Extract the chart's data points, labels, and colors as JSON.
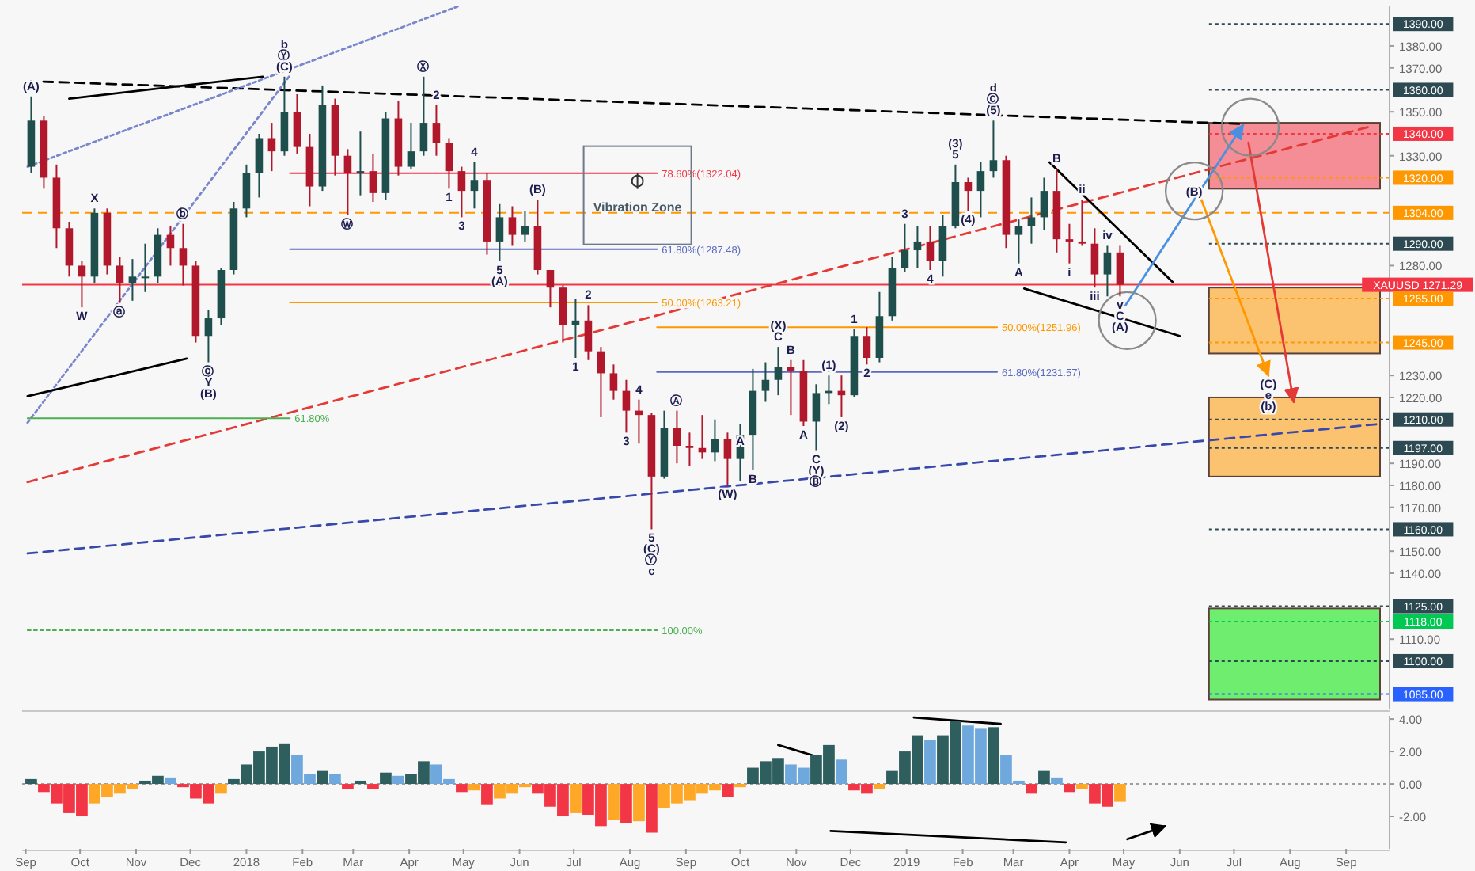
{
  "chart_data": [
    {
      "type": "candlestick",
      "xlim": [
        "2017-08-30",
        "2019-09-25"
      ],
      "ylim": [
        1078,
        1398
      ],
      "tick_labels": "y",
      "yticks": [
        {
          "value": 1380,
          "label": "1380.00"
        },
        {
          "value": 1370,
          "label": "1370.00"
        },
        {
          "value": 1350,
          "label": "1350.00"
        },
        {
          "value": 1330,
          "label": "1330.00"
        },
        {
          "value": 1280,
          "label": "1280.00"
        },
        {
          "value": 1230,
          "label": "1230.00"
        },
        {
          "value": 1220,
          "label": "1220.00"
        },
        {
          "value": 1190,
          "label": "1190.00"
        },
        {
          "value": 1180,
          "label": "1180.00"
        },
        {
          "value": 1170,
          "label": "1170.00"
        },
        {
          "value": 1150,
          "label": "1150.00"
        },
        {
          "value": 1140,
          "label": "1140.00"
        },
        {
          "value": 1110,
          "label": "1110.00"
        }
      ],
      "x": [
        "2017-09-04",
        "2017-09-11",
        "2017-09-18",
        "2017-09-25",
        "2017-10-02",
        "2017-10-09",
        "2017-10-16",
        "2017-10-23",
        "2017-10-30",
        "2017-11-06",
        "2017-11-13",
        "2017-11-20",
        "2017-11-27",
        "2017-12-04",
        "2017-12-11",
        "2017-12-18",
        "2017-12-25",
        "2018-01-01",
        "2018-01-08",
        "2018-01-15",
        "2018-01-22",
        "2018-01-29",
        "2018-02-05",
        "2018-02-12",
        "2018-02-19",
        "2018-02-26",
        "2018-03-05",
        "2018-03-12",
        "2018-03-19",
        "2018-03-26",
        "2018-04-02",
        "2018-04-09",
        "2018-04-16",
        "2018-04-23",
        "2018-04-30",
        "2018-05-07",
        "2018-05-14",
        "2018-05-21",
        "2018-05-28",
        "2018-06-04",
        "2018-06-11",
        "2018-06-18",
        "2018-06-25",
        "2018-07-02",
        "2018-07-09",
        "2018-07-16",
        "2018-07-23",
        "2018-07-30",
        "2018-08-06",
        "2018-08-13",
        "2018-08-20",
        "2018-08-27",
        "2018-09-03",
        "2018-09-10",
        "2018-09-17",
        "2018-09-24",
        "2018-10-01",
        "2018-10-08",
        "2018-10-15",
        "2018-10-22",
        "2018-10-29",
        "2018-11-05",
        "2018-11-12",
        "2018-11-19",
        "2018-11-26",
        "2018-12-03",
        "2018-12-10",
        "2018-12-17",
        "2018-12-24",
        "2018-12-31",
        "2019-01-07",
        "2019-01-14",
        "2019-01-21",
        "2019-01-28",
        "2019-02-04",
        "2019-02-11",
        "2019-02-18",
        "2019-02-25",
        "2019-03-04",
        "2019-03-11",
        "2019-03-18",
        "2019-03-25",
        "2019-04-01",
        "2019-04-08",
        "2019-04-15",
        "2019-04-22",
        "2019-04-29"
      ],
      "ohlc": [
        [
          1325,
          1357,
          1322,
          1346
        ],
        [
          1346,
          1348,
          1315,
          1320
        ],
        [
          1320,
          1326,
          1288,
          1297
        ],
        [
          1297,
          1300,
          1275,
          1280
        ],
        [
          1280,
          1282,
          1261,
          1275
        ],
        [
          1275,
          1306,
          1272,
          1304
        ],
        [
          1304,
          1306,
          1276,
          1280
        ],
        [
          1280,
          1284,
          1263,
          1272
        ],
        [
          1272,
          1283,
          1264,
          1275
        ],
        [
          1275,
          1290,
          1268,
          1275
        ],
        [
          1275,
          1297,
          1272,
          1294
        ],
        [
          1294,
          1298,
          1280,
          1288
        ],
        [
          1288,
          1299,
          1271,
          1280
        ],
        [
          1280,
          1282,
          1245,
          1248
        ],
        [
          1248,
          1260,
          1236,
          1256
        ],
        [
          1256,
          1279,
          1253,
          1278
        ],
        [
          1278,
          1309,
          1276,
          1306
        ],
        [
          1306,
          1326,
          1302,
          1322
        ],
        [
          1322,
          1340,
          1311,
          1338
        ],
        [
          1338,
          1345,
          1323,
          1332
        ],
        [
          1332,
          1366,
          1330,
          1350
        ],
        [
          1350,
          1358,
          1331,
          1334
        ],
        [
          1334,
          1340,
          1307,
          1316
        ],
        [
          1316,
          1362,
          1314,
          1353
        ],
        [
          1353,
          1356,
          1321,
          1330
        ],
        [
          1330,
          1333,
          1303,
          1322
        ],
        [
          1322,
          1341,
          1312,
          1323
        ],
        [
          1323,
          1331,
          1309,
          1313
        ],
        [
          1313,
          1350,
          1310,
          1347
        ],
        [
          1347,
          1355,
          1321,
          1325
        ],
        [
          1325,
          1345,
          1324,
          1332
        ],
        [
          1332,
          1366,
          1330,
          1345
        ],
        [
          1345,
          1353,
          1330,
          1336
        ],
        [
          1336,
          1338,
          1315,
          1323
        ],
        [
          1323,
          1325,
          1302,
          1314
        ],
        [
          1314,
          1327,
          1306,
          1319
        ],
        [
          1319,
          1322,
          1285,
          1291
        ],
        [
          1291,
          1308,
          1282,
          1302
        ],
        [
          1302,
          1307,
          1289,
          1294
        ],
        [
          1294,
          1305,
          1291,
          1298
        ],
        [
          1298,
          1310,
          1276,
          1278
        ],
        [
          1278,
          1278,
          1261,
          1270
        ],
        [
          1270,
          1271,
          1245,
          1253
        ],
        [
          1253,
          1265,
          1238,
          1255
        ],
        [
          1255,
          1262,
          1237,
          1241
        ],
        [
          1241,
          1243,
          1211,
          1231
        ],
        [
          1231,
          1235,
          1219,
          1223
        ],
        [
          1223,
          1228,
          1204,
          1214
        ],
        [
          1214,
          1219,
          1199,
          1212
        ],
        [
          1212,
          1213,
          1160,
          1184
        ],
        [
          1184,
          1214,
          1183,
          1206
        ],
        [
          1206,
          1214,
          1190,
          1198
        ],
        [
          1198,
          1204,
          1189,
          1197
        ],
        [
          1197,
          1212,
          1192,
          1195
        ],
        [
          1195,
          1210,
          1191,
          1201
        ],
        [
          1201,
          1204,
          1180,
          1192
        ],
        [
          1192,
          1208,
          1182,
          1203
        ],
        [
          1203,
          1233,
          1187,
          1223
        ],
        [
          1223,
          1236,
          1218,
          1228
        ],
        [
          1228,
          1243,
          1221,
          1234
        ],
        [
          1234,
          1237,
          1212,
          1232
        ],
        [
          1232,
          1237,
          1207,
          1209
        ],
        [
          1209,
          1226,
          1196,
          1222
        ],
        [
          1222,
          1230,
          1217,
          1223
        ],
        [
          1223,
          1230,
          1211,
          1221
        ],
        [
          1221,
          1251,
          1220,
          1248
        ],
        [
          1248,
          1252,
          1235,
          1238
        ],
        [
          1238,
          1268,
          1236,
          1257
        ],
        [
          1257,
          1284,
          1255,
          1279
        ],
        [
          1279,
          1299,
          1277,
          1287
        ],
        [
          1287,
          1298,
          1279,
          1291
        ],
        [
          1291,
          1298,
          1278,
          1282
        ],
        [
          1282,
          1303,
          1275,
          1298
        ],
        [
          1298,
          1326,
          1297,
          1318
        ],
        [
          1318,
          1320,
          1305,
          1314
        ],
        [
          1314,
          1327,
          1302,
          1323
        ],
        [
          1323,
          1346,
          1320,
          1328
        ],
        [
          1328,
          1330,
          1288,
          1294
        ],
        [
          1294,
          1301,
          1281,
          1298
        ],
        [
          1298,
          1311,
          1290,
          1302
        ],
        [
          1302,
          1320,
          1296,
          1314
        ],
        [
          1314,
          1324,
          1286,
          1292
        ],
        [
          1292,
          1299,
          1281,
          1291
        ],
        [
          1291,
          1310,
          1289,
          1290
        ],
        [
          1290,
          1297,
          1270,
          1276
        ],
        [
          1276,
          1289,
          1266,
          1286
        ],
        [
          1286,
          1289,
          1266,
          1271.29
        ]
      ],
      "colors": [
        "#1f4f4c",
        "#b2182b",
        "#b2182b",
        "#b2182b",
        "#b2182b",
        "#1f4f4c",
        "#b2182b",
        "#b2182b",
        "#1f4f4c",
        "#1f4f4c",
        "#1f4f4c",
        "#b2182b",
        "#b2182b",
        "#b2182b",
        "#1f4f4c",
        "#1f4f4c",
        "#1f4f4c",
        "#1f4f4c",
        "#1f4f4c",
        "#b2182b",
        "#1f4f4c",
        "#b2182b",
        "#b2182b",
        "#1f4f4c",
        "#b2182b",
        "#b2182b",
        "#1f4f4c",
        "#b2182b",
        "#1f4f4c",
        "#b2182b",
        "#1f4f4c",
        "#1f4f4c",
        "#b2182b",
        "#b2182b",
        "#b2182b",
        "#1f4f4c",
        "#b2182b",
        "#1f4f4c",
        "#b2182b",
        "#1f4f4c",
        "#b2182b",
        "#b2182b",
        "#b2182b",
        "#1f4f4c",
        "#b2182b",
        "#b2182b",
        "#b2182b",
        "#b2182b",
        "#b2182b",
        "#b2182b",
        "#1f4f4c",
        "#b2182b",
        "#b2182b",
        "#b2182b",
        "#1f4f4c",
        "#b2182b",
        "#1f4f4c",
        "#1f4f4c",
        "#1f4f4c",
        "#1f4f4c",
        "#b2182b",
        "#b2182b",
        "#1f4f4c",
        "#1f4f4c",
        "#b2182b",
        "#1f4f4c",
        "#b2182b",
        "#1f4f4c",
        "#1f4f4c",
        "#1f4f4c",
        "#1f4f4c",
        "#b2182b",
        "#1f4f4c",
        "#1f4f4c",
        "#b2182b",
        "#1f4f4c",
        "#1f4f4c",
        "#b2182b",
        "#1f4f4c",
        "#1f4f4c",
        "#1f4f4c",
        "#b2182b",
        "#b2182b",
        "#b2182b",
        "#b2182b",
        "#1f4f4c",
        "#b2182b"
      ],
      "series": [
        {
          "type": "line",
          "x": [
            "2017-09-02",
            "2019-07-05"
          ],
          "values": [
            1364,
            1344.5
          ],
          "color": "#000000",
          "line_style": "dashed"
        },
        {
          "type": "line",
          "x": [
            "2017-09-02",
            "2019-09-13"
          ],
          "values": [
            1181.5,
            1343
          ],
          "color": "#e53935",
          "line_style": "dashed"
        },
        {
          "type": "line",
          "x": [
            "2017-09-02",
            "2019-09-20"
          ],
          "values": [
            1149,
            1208
          ],
          "color": "#3949ab",
          "line_style": "dashed"
        },
        {
          "type": "line",
          "x": [
            "2017-09-02",
            "2018-04-28"
          ],
          "values": [
            1325,
            1398
          ],
          "color": "#7986cb",
          "line_style": "dotted"
        },
        {
          "type": "line",
          "x": [
            "2017-09-02",
            "2018-01-25"
          ],
          "values": [
            1208.5,
            1366.5
          ],
          "color": "#7986cb",
          "line_style": "dotted"
        },
        {
          "type": "line",
          "x": [
            "2017-09-25",
            "2018-01-10"
          ],
          "values": [
            1356,
            1366
          ],
          "color": "#000000",
          "line_style": "solid"
        },
        {
          "type": "line",
          "x": [
            "2017-09-02",
            "2017-11-29"
          ],
          "values": [
            1220.6,
            1237.7
          ],
          "color": "#000000",
          "line_style": "solid"
        },
        {
          "type": "line",
          "x": [
            "2019-03-21",
            "2019-05-28"
          ],
          "values": [
            1327,
            1272.6
          ],
          "color": "#000000",
          "line_style": "solid"
        },
        {
          "type": "line",
          "x": [
            "2019-03-07",
            "2019-06-01"
          ],
          "values": [
            1269.6,
            1248
          ],
          "color": "#000000",
          "line_style": "solid"
        },
        {
          "type": "line",
          "name": "78.60%(1322.04)",
          "x": [
            "2018-01-25",
            "2018-08-16"
          ],
          "values": [
            1322.04,
            1322.04
          ],
          "color": "#f23645",
          "line_style": "solid"
        },
        {
          "type": "line",
          "name": "61.80%(1287.48)",
          "x": [
            "2018-01-25",
            "2018-08-16"
          ],
          "values": [
            1287.48,
            1287.48
          ],
          "color": "#5c6bc0",
          "line_style": "solid"
        },
        {
          "type": "line",
          "name": "50.00%(1263.21)",
          "x": [
            "2018-01-25",
            "2018-08-16"
          ],
          "values": [
            1263.21,
            1263.21
          ],
          "color": "#ff9800",
          "line_style": "solid"
        },
        {
          "type": "line",
          "name": "50.00%(1251.96)",
          "x": [
            "2018-08-16",
            "2019-02-20"
          ],
          "values": [
            1251.96,
            1251.96
          ],
          "color": "#ff9800",
          "line_style": "solid"
        },
        {
          "type": "line",
          "name": "61.80%(1231.57)",
          "x": [
            "2018-08-16",
            "2019-02-20"
          ],
          "values": [
            1231.57,
            1231.57
          ],
          "color": "#5c6bc0",
          "line_style": "solid"
        },
        {
          "type": "line",
          "name": "61.80%",
          "x": [
            "2017-09-02",
            "2018-01-25"
          ],
          "values": [
            1210.5,
            1210.5
          ],
          "color": "#4caf50",
          "line_style": "solid"
        },
        {
          "type": "line",
          "name": "100.00%",
          "x": [
            "2017-09-02",
            "2018-08-16"
          ],
          "values": [
            1114,
            1114
          ],
          "color": "#4caf50",
          "line_style": "dotted"
        },
        {
          "type": "line",
          "x": [
            "2019-05-02",
            "2019-06-09",
            "2019-07-06"
          ],
          "values": [
            1262,
            1310,
            1344
          ],
          "color": "#4a90e2",
          "line_style": "solid"
        },
        {
          "type": "line",
          "x": [
            "2019-06-12",
            "2019-07-20"
          ],
          "values": [
            1312,
            1230
          ],
          "color": "#ff9800",
          "line_style": "solid"
        },
        {
          "type": "line",
          "x": [
            "2019-07-09",
            "2019-08-03"
          ],
          "values": [
            1336,
            1218
          ],
          "color": "#e53935",
          "line_style": "solid"
        },
        {
          "type": "scatter",
          "x": [
            "2019-05-03",
            "2019-06-09",
            "2019-07-10"
          ],
          "values": [
            1255,
            1314,
            1343
          ],
          "color": "#8a8a8a",
          "marker": "circle"
        }
      ],
      "bands": [
        {
          "axis": "y",
          "from": 1315,
          "to": 1345,
          "color": "#f23645"
        },
        {
          "axis": "y",
          "from": 1240,
          "to": 1270,
          "color": "#ff9800"
        },
        {
          "axis": "y",
          "from": 1184,
          "to": 1220,
          "color": "#ff9800"
        },
        {
          "axis": "y",
          "from": 1082.5,
          "to": 1124,
          "color": "#00e600"
        }
      ],
      "ref_lines": [
        {
          "axis": "y",
          "value": 1390,
          "label": "1390.00",
          "color": "#2d4a53",
          "line_style": "dotted"
        },
        {
          "axis": "y",
          "value": 1360,
          "label": "1360.00",
          "color": "#2d4a53",
          "line_style": "dotted"
        },
        {
          "axis": "y",
          "value": 1340,
          "label": "1340.00",
          "color": "#f23645",
          "line_style": "dotted"
        },
        {
          "axis": "y",
          "value": 1320,
          "label": "1320.00",
          "color": "#ff9800",
          "line_style": "dotted"
        },
        {
          "axis": "y",
          "value": 1304,
          "label": "1304.00",
          "color": "#ff9800",
          "line_style": "dashed"
        },
        {
          "axis": "y",
          "value": 1290,
          "label": "1290.00",
          "color": "#2d4a53",
          "line_style": "dotted"
        },
        {
          "axis": "y",
          "value": 1271.29,
          "label": "XAUUSD 1271.29",
          "color": "#f23645",
          "line_style": "solid"
        },
        {
          "axis": "y",
          "value": 1265,
          "label": "1265.00",
          "color": "#ff9800",
          "line_style": "dotted"
        },
        {
          "axis": "y",
          "value": 1245,
          "label": "1245.00",
          "color": "#ff9800",
          "line_style": "dotted"
        },
        {
          "axis": "y",
          "value": 1210,
          "label": "1210.00",
          "color": "#2d4a53",
          "line_style": "dotted"
        },
        {
          "axis": "y",
          "value": 1197,
          "label": "1197.00",
          "color": "#2d4a53",
          "line_style": "dotted"
        },
        {
          "axis": "y",
          "value": 1160,
          "label": "1160.00",
          "color": "#2d4a53",
          "line_style": "dotted"
        },
        {
          "axis": "y",
          "value": 1125,
          "label": "1125.00",
          "color": "#2d4a53",
          "line_style": "dotted"
        },
        {
          "axis": "y",
          "value": 1118,
          "label": "1118.00",
          "color": "#00c853",
          "line_style": "dotted"
        },
        {
          "axis": "y",
          "value": 1100,
          "label": "1100.00",
          "color": "#2d4a53",
          "line_style": "dotted"
        },
        {
          "axis": "y",
          "value": 1085,
          "label": "1085.00",
          "color": "#2962ff",
          "line_style": "dotted"
        }
      ],
      "annotations": [
        "Vibration Zone",
        {
          "text": "(A)",
          "x": "2017-09-04",
          "y": 1357
        },
        {
          "text": "X",
          "x": "2017-10-09",
          "y": 1306
        },
        {
          "text": "W",
          "x": "2017-10-02",
          "y": 1261
        },
        {
          "text": "ⓐ",
          "x": "2017-10-23",
          "y": 1263
        },
        {
          "text": "ⓑ",
          "x": "2017-11-27",
          "y": 1299
        },
        {
          "text": "ⓒ",
          "x": "2017-12-11",
          "y": 1236
        },
        {
          "text": "Y",
          "x": "2017-12-11",
          "y": 1236
        },
        {
          "text": "(B)",
          "x": "2017-12-11",
          "y": 1236
        },
        {
          "text": "b",
          "x": "2018-01-22",
          "y": 1366
        },
        {
          "text": "Ⓨ",
          "x": "2018-01-22",
          "y": 1366
        },
        {
          "text": "(C)",
          "x": "2018-01-22",
          "y": 1366
        },
        {
          "text": "Ⓦ",
          "x": "2018-02-26",
          "y": 1303
        },
        {
          "text": "Ⓧ",
          "x": "2018-04-09",
          "y": 1366
        },
        {
          "text": "2",
          "x": "2018-04-16",
          "y": 1353
        },
        {
          "text": "1",
          "x": "2018-04-23",
          "y": 1315
        },
        {
          "text": "3",
          "x": "2018-04-30",
          "y": 1302
        },
        {
          "text": "4",
          "x": "2018-05-07",
          "y": 1327
        },
        {
          "text": "5",
          "x": "2018-05-21",
          "y": 1282
        },
        {
          "text": "(A)",
          "x": "2018-05-21",
          "y": 1282
        },
        {
          "text": "(B)",
          "x": "2018-06-11",
          "y": 1310
        },
        {
          "text": "1",
          "x": "2018-07-02",
          "y": 1238
        },
        {
          "text": "2",
          "x": "2018-07-09",
          "y": 1262
        },
        {
          "text": "3",
          "x": "2018-07-30",
          "y": 1204
        },
        {
          "text": "4",
          "x": "2018-08-06",
          "y": 1219
        },
        {
          "text": "5",
          "x": "2018-08-13",
          "y": 1160
        },
        {
          "text": "(C)",
          "x": "2018-08-13",
          "y": 1160
        },
        {
          "text": "Ⓨ",
          "x": "2018-08-13",
          "y": 1160
        },
        {
          "text": "c",
          "x": "2018-08-13",
          "y": 1160
        },
        {
          "text": "Ⓐ",
          "x": "2018-08-27",
          "y": 1214
        },
        {
          "text": "(W)",
          "x": "2018-09-24",
          "y": 1180
        },
        {
          "text": "A",
          "x": "2018-10-01",
          "y": 1204
        },
        {
          "text": "B",
          "x": "2018-10-08",
          "y": 1187
        },
        {
          "text": "(X)",
          "x": "2018-10-22",
          "y": 1243
        },
        {
          "text": "C",
          "x": "2018-10-22",
          "y": 1243
        },
        {
          "text": "B",
          "x": "2018-10-29",
          "y": 1237
        },
        {
          "text": "A",
          "x": "2018-11-05",
          "y": 1207
        },
        {
          "text": "C",
          "x": "2018-11-12",
          "y": 1196
        },
        {
          "text": "(Y)",
          "x": "2018-11-12",
          "y": 1196
        },
        {
          "text": "Ⓑ",
          "x": "2018-11-12",
          "y": 1196
        },
        {
          "text": "(1)",
          "x": "2018-11-19",
          "y": 1230
        },
        {
          "text": "(2)",
          "x": "2018-11-26",
          "y": 1211
        },
        {
          "text": "1",
          "x": "2018-12-03",
          "y": 1251
        },
        {
          "text": "2",
          "x": "2018-12-10",
          "y": 1235
        },
        {
          "text": "3",
          "x": "2018-12-31",
          "y": 1299
        },
        {
          "text": "4",
          "x": "2019-01-14",
          "y": 1278
        },
        {
          "text": "(3)",
          "x": "2019-01-28",
          "y": 1326
        },
        {
          "text": "5",
          "x": "2019-01-28",
          "y": 1326
        },
        {
          "text": "(4)",
          "x": "2019-02-04",
          "y": 1305
        },
        {
          "text": "d",
          "x": "2019-02-18",
          "y": 1346
        },
        {
          "text": "Ⓒ",
          "x": "2019-02-18",
          "y": 1346
        },
        {
          "text": "(5)",
          "x": "2019-02-18",
          "y": 1346
        },
        {
          "text": "A",
          "x": "2019-03-04",
          "y": 1281
        },
        {
          "text": "B",
          "x": "2019-03-25",
          "y": 1324
        },
        {
          "text": "i",
          "x": "2019-04-01",
          "y": 1281
        },
        {
          "text": "ii",
          "x": "2019-04-08",
          "y": 1310
        },
        {
          "text": "iii",
          "x": "2019-04-15",
          "y": 1270
        },
        {
          "text": "iv",
          "x": "2019-04-22",
          "y": 1289
        },
        {
          "text": "v",
          "x": "2019-04-29",
          "y": 1266
        },
        {
          "text": "C",
          "x": "2019-04-29",
          "y": 1266
        },
        {
          "text": "(A)",
          "x": "2019-04-29",
          "y": 1266
        },
        {
          "text": "(B)",
          "x": "2019-06-09",
          "y": 1314
        },
        {
          "text": "(C)",
          "x": "2019-07-20",
          "y": 1230
        },
        {
          "text": "e",
          "x": "2019-07-20",
          "y": 1230
        },
        {
          "text": "(b)",
          "x": "2019-07-20",
          "y": 1230
        }
      ]
    },
    {
      "type": "bar",
      "xlim": [
        "2017-08-30",
        "2019-09-25"
      ],
      "ylim": [
        -4,
        4.2
      ],
      "yticks": [
        {
          "value": 4,
          "label": "4.00"
        },
        {
          "value": 2,
          "label": "2.00"
        },
        {
          "value": 0,
          "label": "0.00"
        },
        {
          "value": -2,
          "label": "-2.00"
        }
      ],
      "xticks": [
        {
          "value": "2017-09-01",
          "label": "Sep"
        },
        {
          "value": "2017-10-01",
          "label": "Oct"
        },
        {
          "value": "2017-11-01",
          "label": "Nov"
        },
        {
          "value": "2017-12-01",
          "label": "Dec"
        },
        {
          "value": "2018-01-01",
          "label": "2018"
        },
        {
          "value": "2018-02-01",
          "label": "Feb"
        },
        {
          "value": "2018-03-01",
          "label": "Mar"
        },
        {
          "value": "2018-04-01",
          "label": "Apr"
        },
        {
          "value": "2018-05-01",
          "label": "May"
        },
        {
          "value": "2018-06-01",
          "label": "Jun"
        },
        {
          "value": "2018-07-01",
          "label": "Jul"
        },
        {
          "value": "2018-08-01",
          "label": "Aug"
        },
        {
          "value": "2018-09-01",
          "label": "Sep"
        },
        {
          "value": "2018-10-01",
          "label": "Oct"
        },
        {
          "value": "2018-11-01",
          "label": "Nov"
        },
        {
          "value": "2018-12-01",
          "label": "Dec"
        },
        {
          "value": "2019-01-01",
          "label": "2019"
        },
        {
          "value": "2019-02-01",
          "label": "Feb"
        },
        {
          "value": "2019-03-01",
          "label": "Mar"
        },
        {
          "value": "2019-04-01",
          "label": "Apr"
        },
        {
          "value": "2019-05-01",
          "label": "May"
        },
        {
          "value": "2019-06-01",
          "label": "Jun"
        },
        {
          "value": "2019-07-01",
          "label": "Jul"
        },
        {
          "value": "2019-08-01",
          "label": "Aug"
        },
        {
          "value": "2019-09-01",
          "label": "Sep"
        }
      ],
      "x": [
        "2017-09-04",
        "2017-09-11",
        "2017-09-18",
        "2017-09-25",
        "2017-10-02",
        "2017-10-09",
        "2017-10-16",
        "2017-10-23",
        "2017-10-30",
        "2017-11-06",
        "2017-11-13",
        "2017-11-20",
        "2017-11-27",
        "2017-12-04",
        "2017-12-11",
        "2017-12-18",
        "2017-12-25",
        "2018-01-01",
        "2018-01-08",
        "2018-01-15",
        "2018-01-22",
        "2018-01-29",
        "2018-02-05",
        "2018-02-12",
        "2018-02-19",
        "2018-02-26",
        "2018-03-05",
        "2018-03-12",
        "2018-03-19",
        "2018-03-26",
        "2018-04-02",
        "2018-04-09",
        "2018-04-16",
        "2018-04-23",
        "2018-04-30",
        "2018-05-07",
        "2018-05-14",
        "2018-05-21",
        "2018-05-28",
        "2018-06-04",
        "2018-06-11",
        "2018-06-18",
        "2018-06-25",
        "2018-07-02",
        "2018-07-09",
        "2018-07-16",
        "2018-07-23",
        "2018-07-30",
        "2018-08-06",
        "2018-08-13",
        "2018-08-20",
        "2018-08-27",
        "2018-09-03",
        "2018-09-10",
        "2018-09-17",
        "2018-09-24",
        "2018-10-01",
        "2018-10-08",
        "2018-10-15",
        "2018-10-22",
        "2018-10-29",
        "2018-11-05",
        "2018-11-12",
        "2018-11-19",
        "2018-11-26",
        "2018-12-03",
        "2018-12-10",
        "2018-12-17",
        "2018-12-24",
        "2018-12-31",
        "2019-01-07",
        "2019-01-14",
        "2019-01-21",
        "2019-01-28",
        "2019-02-04",
        "2019-02-11",
        "2019-02-18",
        "2019-02-25",
        "2019-03-04",
        "2019-03-11",
        "2019-03-18",
        "2019-03-25",
        "2019-04-01",
        "2019-04-08",
        "2019-04-15",
        "2019-04-22",
        "2019-04-29"
      ],
      "values": [
        0.3,
        -0.5,
        -1.2,
        -1.8,
        -2.0,
        -1.2,
        -0.8,
        -0.6,
        -0.3,
        0.2,
        0.5,
        0.4,
        -0.2,
        -0.9,
        -1.2,
        -0.6,
        0.3,
        1.2,
        2.0,
        2.3,
        2.5,
        1.8,
        0.6,
        0.8,
        0.6,
        -0.3,
        0.2,
        -0.3,
        0.7,
        0.5,
        0.6,
        1.4,
        1.2,
        0.3,
        -0.5,
        -0.4,
        -1.3,
        -0.9,
        -0.6,
        -0.2,
        -0.6,
        -1.4,
        -2.0,
        -1.8,
        -1.9,
        -2.6,
        -2.2,
        -2.4,
        -2.3,
        -3.0,
        -1.5,
        -1.2,
        -1.0,
        -0.6,
        -0.4,
        -0.8,
        -0.2,
        1.0,
        1.4,
        1.6,
        1.2,
        1.0,
        1.8,
        2.4,
        1.5,
        -0.4,
        -0.6,
        -0.3,
        0.8,
        2.0,
        3.0,
        2.7,
        3.0,
        3.9,
        3.6,
        3.4,
        3.5,
        1.8,
        0.2,
        -0.6,
        0.8,
        0.4,
        -0.5,
        -0.3,
        -1.2,
        -1.4,
        -1.1
      ],
      "colors": [
        "#2e5e5e",
        "#f23645",
        "#f23645",
        "#f23645",
        "#f23645",
        "#ffa726",
        "#ffa726",
        "#ffa726",
        "#ffa726",
        "#2e5e5e",
        "#2e5e5e",
        "#6fa8dc",
        "#f23645",
        "#f23645",
        "#f23645",
        "#ffa726",
        "#2e5e5e",
        "#2e5e5e",
        "#2e5e5e",
        "#2e5e5e",
        "#2e5e5e",
        "#6fa8dc",
        "#6fa8dc",
        "#2e5e5e",
        "#6fa8dc",
        "#f23645",
        "#2e5e5e",
        "#f23645",
        "#2e5e5e",
        "#6fa8dc",
        "#2e5e5e",
        "#2e5e5e",
        "#6fa8dc",
        "#6fa8dc",
        "#f23645",
        "#ffa726",
        "#f23645",
        "#ffa726",
        "#ffa726",
        "#ffa726",
        "#f23645",
        "#f23645",
        "#f23645",
        "#ffa726",
        "#f23645",
        "#f23645",
        "#ffa726",
        "#f23645",
        "#ffa726",
        "#f23645",
        "#ffa726",
        "#ffa726",
        "#ffa726",
        "#ffa726",
        "#ffa726",
        "#f23645",
        "#ffa726",
        "#2e5e5e",
        "#2e5e5e",
        "#2e5e5e",
        "#6fa8dc",
        "#6fa8dc",
        "#2e5e5e",
        "#2e5e5e",
        "#6fa8dc",
        "#f23645",
        "#f23645",
        "#ffa726",
        "#2e5e5e",
        "#2e5e5e",
        "#2e5e5e",
        "#6fa8dc",
        "#2e5e5e",
        "#2e5e5e",
        "#6fa8dc",
        "#6fa8dc",
        "#2e5e5e",
        "#6fa8dc",
        "#6fa8dc",
        "#f23645",
        "#2e5e5e",
        "#6fa8dc",
        "#f23645",
        "#ffa726",
        "#f23645",
        "#f23645",
        "#ffa726"
      ],
      "series": [
        {
          "type": "line",
          "x": [
            "2018-10-22",
            "2018-11-12"
          ],
          "values": [
            2.4,
            1.7
          ],
          "color": "#000000",
          "line_style": "solid"
        },
        {
          "type": "line",
          "x": [
            "2019-01-05",
            "2019-02-22"
          ],
          "values": [
            4.1,
            3.7
          ],
          "color": "#000000",
          "line_style": "solid"
        },
        {
          "type": "line",
          "x": [
            "2018-11-20",
            "2019-03-30"
          ],
          "values": [
            -2.9,
            -3.6
          ],
          "color": "#000000",
          "line_style": "solid"
        },
        {
          "type": "line",
          "x": [
            "2019-05-03",
            "2019-05-24"
          ],
          "values": [
            -3.4,
            -2.6
          ],
          "color": "#000000",
          "line_style": "solid"
        }
      ],
      "ref_lines": [
        {
          "axis": "y",
          "value": 0,
          "color": "#9e9e9e",
          "line_style": "dotted"
        }
      ]
    }
  ]
}
